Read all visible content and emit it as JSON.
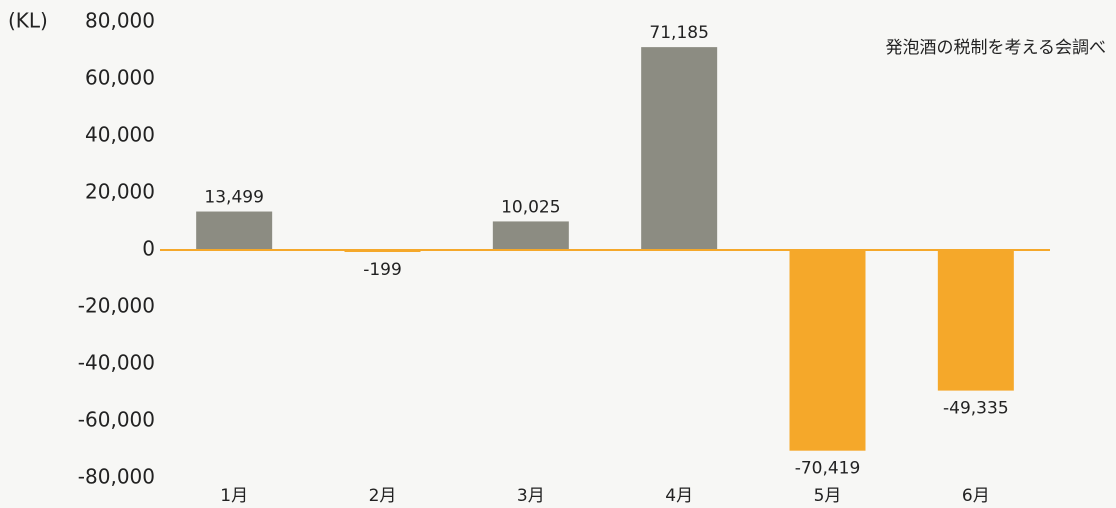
{
  "chart_data": {
    "type": "bar",
    "y_unit": "(KL)",
    "source": "発泡酒の税制を考える会調べ",
    "categories": [
      "1月",
      "2月",
      "3月",
      "4月",
      "5月",
      "6月"
    ],
    "values": [
      13499,
      -199,
      10025,
      71185,
      -70419,
      -49335
    ],
    "value_labels": [
      "13,499",
      "-199",
      "10,025",
      "71,185",
      "-70,419",
      "-49,335"
    ],
    "positive_color": "#8c8c82",
    "negative_color": "#f5a82a",
    "ylim": [
      -80000,
      80000
    ],
    "yticks": [
      {
        "value": -80000,
        "label": "-80,000"
      },
      {
        "value": -60000,
        "label": "-60,000"
      },
      {
        "value": -40000,
        "label": "-40,000"
      },
      {
        "value": -20000,
        "label": "-20,000"
      },
      0,
      {
        "value": 20000,
        "label": "20,000"
      },
      {
        "value": 40000,
        "label": "40,000"
      },
      {
        "value": 60000,
        "label": "60,000"
      },
      {
        "value": 80000,
        "label": "80,000"
      }
    ]
  }
}
